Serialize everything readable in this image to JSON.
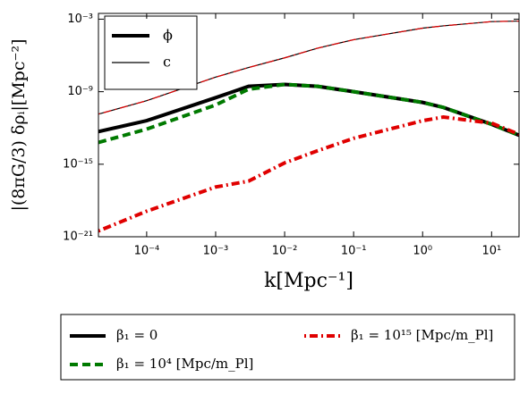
{
  "chart_data": {
    "type": "line",
    "xlabel": "k[Mpc⁻¹]",
    "ylabel": "|(8πG/3) δρᵢ|[Mpc⁻²]",
    "xscale": "log",
    "yscale": "log",
    "xlim": [
      2e-05,
      25
    ],
    "ylim": [
      1e-21,
      0.003
    ],
    "xticks": [
      {
        "value": 0.0001,
        "label": "10⁻⁴"
      },
      {
        "value": 0.001,
        "label": "10⁻³"
      },
      {
        "value": 0.01,
        "label": "10⁻²"
      },
      {
        "value": 0.1,
        "label": "10⁻¹"
      },
      {
        "value": 1,
        "label": "10⁰"
      },
      {
        "value": 10,
        "label": "10¹"
      }
    ],
    "yticks": [
      {
        "value": 1e-21,
        "label": "10⁻²¹"
      },
      {
        "value": 1e-15,
        "label": "10⁻¹⁵"
      },
      {
        "value": 1e-09,
        "label": "10⁻⁹"
      },
      {
        "value": 0.001,
        "label": "10⁻³"
      }
    ],
    "legend_styles": [
      {
        "label": "ϕ",
        "width": 4
      },
      {
        "label": "c",
        "width": 1.2
      }
    ],
    "legend_models": [
      {
        "label": "β₁ = 0",
        "color": "#000000",
        "dash": "none"
      },
      {
        "label": "β₁ = 10⁴ [Mpc/m_Pl]",
        "color": "#007a00",
        "dash": "9,5"
      },
      {
        "label": "β₁ = 10¹⁵ [Mpc/m_Pl]",
        "color": "#e00000",
        "dash": "2,4,9,4"
      }
    ],
    "x": [
      2e-05,
      0.0001,
      0.001,
      0.003,
      0.01,
      0.03,
      0.1,
      1,
      2,
      10,
      25
    ],
    "series": [
      {
        "style": 1,
        "model": 0,
        "values": [
          1.4e-11,
          1.8e-10,
          1.6e-08,
          1e-07,
          6.3e-07,
          4e-06,
          2e-05,
          0.00018,
          0.00028,
          0.00063,
          0.0007
        ]
      },
      {
        "style": 1,
        "model": 2,
        "values": [
          1.4e-11,
          1.8e-10,
          1.6e-08,
          1e-07,
          6.3e-07,
          4e-06,
          2e-05,
          0.00018,
          0.00028,
          0.00063,
          0.0007
        ]
      },
      {
        "style": 0,
        "model": 0,
        "values": [
          5e-13,
          4e-12,
          3.2e-10,
          2.8e-09,
          4e-09,
          2.8e-09,
          1e-09,
          1.3e-10,
          5e-11,
          2e-12,
          2.5e-13
        ]
      },
      {
        "style": 0,
        "model": 1,
        "values": [
          6.3e-14,
          8e-13,
          8e-11,
          1.6e-09,
          4e-09,
          2.8e-09,
          1e-09,
          1.3e-10,
          5e-11,
          2e-12,
          2.5e-13
        ]
      },
      {
        "style": 0,
        "model": 2,
        "values": [
          3e-21,
          1.3e-19,
          1.3e-17,
          4e-17,
          1.3e-15,
          1.3e-14,
          1.4e-13,
          4e-12,
          8e-12,
          2.5e-12,
          3e-13
        ]
      }
    ]
  }
}
